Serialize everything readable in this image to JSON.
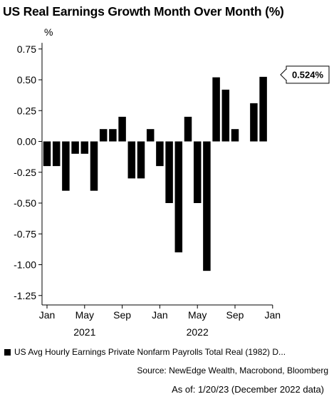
{
  "title": "US Real Earnings Growth Month Over Month (%)",
  "legend_label": "US Avg Hourly Earnings Private Nonfarm Payrolls Total Real (1982) D...",
  "source": "Source: NewEdge Wealth, Macrobond, Bloomberg",
  "as_of": "As of: 1/20/23 (December 2022 data)",
  "chart_data": {
    "type": "bar",
    "ylabel": "%",
    "ylim": [
      -1.3,
      0.8
    ],
    "yticks": [
      "0.75",
      "0.50",
      "0.25",
      "0.00",
      "-0.25",
      "-0.50",
      "-0.75",
      "-1.00",
      "-1.25"
    ],
    "ytick_values": [
      0.75,
      0.5,
      0.25,
      0,
      -0.25,
      -0.5,
      -0.75,
      -1.0,
      -1.25
    ],
    "x_tick_labels": [
      "Jan",
      "May",
      "Sep",
      "Jan",
      "May",
      "Sep",
      "Jan"
    ],
    "x_tick_month_index": [
      0,
      4,
      8,
      12,
      16,
      20,
      24
    ],
    "year_labels": [
      "2021",
      "2022"
    ],
    "year_label_month_index": [
      4,
      16
    ],
    "categories": [
      "2021-01",
      "2021-02",
      "2021-03",
      "2021-04",
      "2021-05",
      "2021-06",
      "2021-07",
      "2021-08",
      "2021-09",
      "2021-10",
      "2021-11",
      "2021-12",
      "2022-01",
      "2022-02",
      "2022-03",
      "2022-04",
      "2022-05",
      "2022-06",
      "2022-07",
      "2022-08",
      "2022-09",
      "2022-10",
      "2022-11",
      "2022-12"
    ],
    "values": [
      -0.2,
      -0.2,
      -0.4,
      -0.1,
      -0.1,
      -0.4,
      0.1,
      0.1,
      0.2,
      -0.3,
      -0.3,
      0.1,
      -0.2,
      -0.5,
      -0.9,
      0.2,
      -0.5,
      -1.05,
      0.52,
      0.42,
      0.1,
      0.0,
      0.31,
      0.524
    ],
    "callout": {
      "label": "0.524%",
      "value": 0.524
    },
    "grid": false,
    "bar_color": "#000000"
  }
}
